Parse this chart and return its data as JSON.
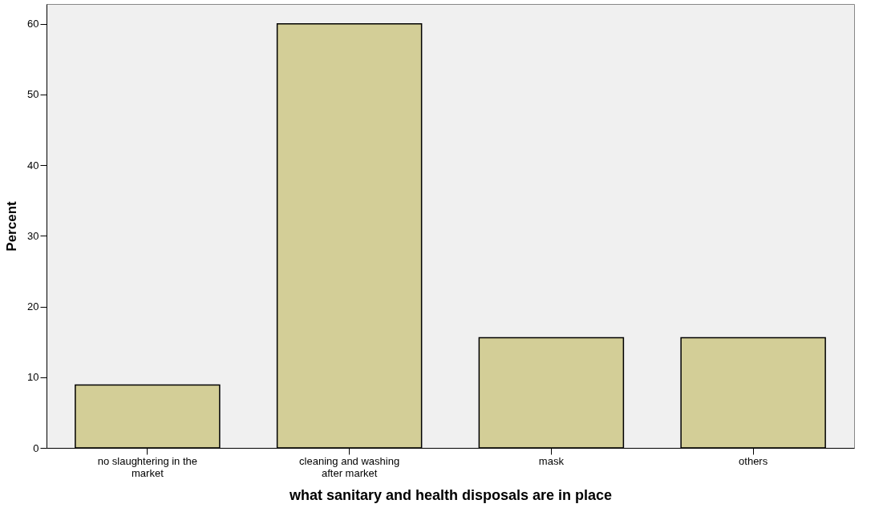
{
  "chart_data": {
    "type": "bar",
    "xlabel": "what sanitary and health disposals are in place",
    "ylabel": "Percent",
    "categories": [
      "no slaughtering in the market",
      "cleaning and washing after market",
      "mask",
      "others"
    ],
    "values": [
      8.9,
      60.0,
      15.6,
      15.6
    ],
    "color": "#d3ce97",
    "ylim": [
      0,
      62.8
    ],
    "yticks": [
      0,
      10,
      20,
      30,
      40,
      50,
      60
    ],
    "grid": false
  }
}
